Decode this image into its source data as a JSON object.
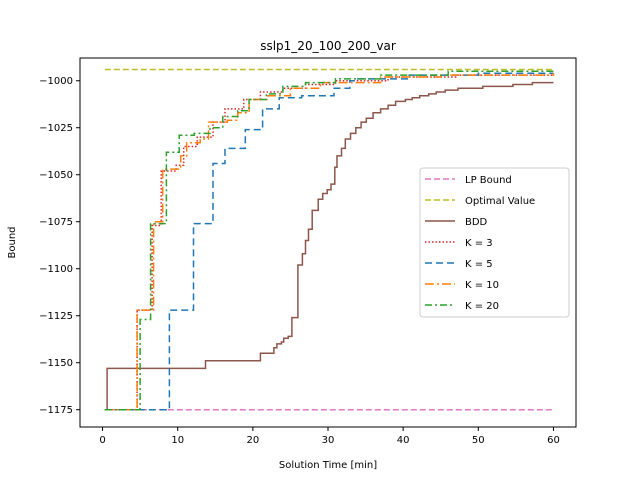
{
  "chart_data": {
    "type": "line",
    "title": "sslp1_20_100_200_var",
    "xlabel": "Solution Time [min]",
    "ylabel": "Bound",
    "xlim": [
      -3,
      63
    ],
    "ylim": [
      -1184.2,
      -987.9
    ],
    "xticks": [
      0,
      10,
      20,
      30,
      40,
      50,
      60
    ],
    "yticks": [
      -1175,
      -1150,
      -1125,
      -1100,
      -1075,
      -1050,
      -1025,
      -1000
    ],
    "legend_position": "center-right",
    "series": [
      {
        "name": "LP Bound",
        "color": "#e377c2",
        "dash": "6,3",
        "width": 1.5,
        "step": false,
        "x": [
          0.3,
          60
        ],
        "y": [
          -1175,
          -1175
        ]
      },
      {
        "name": "Optimal Value",
        "color": "#bcbd22",
        "dash": "6,3",
        "width": 1.5,
        "step": false,
        "x": [
          0.3,
          60
        ],
        "y": [
          -994,
          -994
        ]
      },
      {
        "name": "BDD",
        "color": "#8c564b",
        "dash": "",
        "width": 1.5,
        "step": true,
        "x": [
          0.3,
          0.6,
          13.7,
          21,
          21.8,
          22.8,
          23.2,
          23.8,
          24.1,
          24.7,
          25.2,
          26,
          26.6,
          27,
          27.4,
          27.9,
          28.7,
          29.3,
          29.9,
          30.4,
          30.9,
          31.2,
          31.8,
          32.3,
          33,
          33.7,
          34.4,
          35.1,
          36,
          37,
          38,
          39,
          40.3,
          41.2,
          42.2,
          43.4,
          44.4,
          45.6,
          47.3,
          49.5,
          50.6,
          54.6,
          57.2,
          59.7,
          60
        ],
        "y": [
          -1175,
          -1153,
          -1149,
          -1145,
          -1145,
          -1142,
          -1140,
          -1139,
          -1137,
          -1136,
          -1126,
          -1098,
          -1092,
          -1085,
          -1079,
          -1069,
          -1063,
          -1060,
          -1058,
          -1055,
          -1046,
          -1040,
          -1036,
          -1031,
          -1028,
          -1025,
          -1022,
          -1020,
          -1017,
          -1015,
          -1013,
          -1011,
          -1010,
          -1009,
          -1008,
          -1007,
          -1006,
          -1005,
          -1004,
          -1004,
          -1003,
          -1002,
          -1001,
          -1001,
          -1001
        ]
      },
      {
        "name": "K = 3",
        "color": "#d62728",
        "dash": "1.5,2",
        "width": 1.5,
        "step": true,
        "x": [
          0.3,
          4.6,
          6.6,
          7.8,
          9.8,
          10.8,
          12.6,
          14.7,
          16.3,
          18.8,
          21,
          24,
          27,
          31,
          38,
          47,
          60
        ],
        "y": [
          -1175,
          -1122,
          -1077,
          -1048,
          -1045,
          -1035,
          -1030,
          -1022,
          -1015,
          -1010,
          -1006,
          -1004,
          -1002,
          -1000,
          -998,
          -997,
          -997
        ]
      },
      {
        "name": "K = 5",
        "color": "#1f77b4",
        "dash": "7,4",
        "width": 1.5,
        "step": true,
        "x": [
          0.3,
          8.9,
          12.1,
          14.7,
          16.3,
          19,
          21.3,
          23.5,
          26.5,
          30.8,
          32.9,
          33.8,
          40.8,
          50,
          60
        ],
        "y": [
          -1175,
          -1122,
          -1076,
          -1044,
          -1036,
          -1026,
          -1015,
          -1009,
          -1008,
          -1004,
          -1000,
          -999,
          -997,
          -996,
          -996
        ]
      },
      {
        "name": "K = 10",
        "color": "#ff7f0e",
        "dash": "9,3,2,3",
        "width": 1.5,
        "step": true,
        "x": [
          0.3,
          4.6,
          6.8,
          8,
          10.4,
          11.2,
          13,
          14.1,
          16.6,
          18,
          19.5,
          22,
          25,
          29,
          37,
          45,
          60
        ],
        "y": [
          -1175,
          -1122,
          -1075,
          -1047,
          -1040,
          -1033,
          -1031,
          -1022,
          -1021,
          -1017,
          -1010,
          -1008,
          -1004,
          -1001,
          -998,
          -997,
          -996
        ]
      },
      {
        "name": "K = 20",
        "color": "#2ca02c",
        "dash": "7,3,2,3",
        "width": 1.5,
        "step": true,
        "x": [
          0.3,
          5,
          6.4,
          8.5,
          10.2,
          12.2,
          14.3,
          16,
          18,
          19.5,
          21.8,
          24,
          27,
          31,
          37,
          46,
          60
        ],
        "y": [
          -1175,
          -1127,
          -1076,
          -1038,
          -1029,
          -1028,
          -1025,
          -1019,
          -1016,
          -1010,
          -1007,
          -1003,
          -1001,
          -999,
          -997,
          -995,
          -995
        ]
      }
    ]
  }
}
